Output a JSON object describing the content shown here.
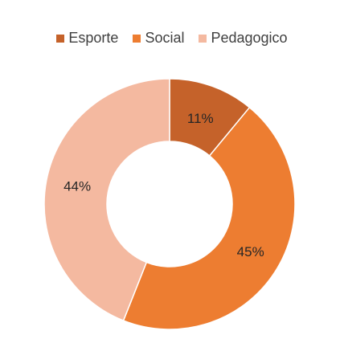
{
  "chart_data": {
    "type": "pie",
    "variant": "donut",
    "categories": [
      "Esporte",
      "Social",
      "Pedagogico"
    ],
    "values": [
      11,
      45,
      44
    ],
    "value_labels": [
      "11%",
      "45%",
      "44%"
    ],
    "colors": [
      "#c5622a",
      "#ed7d31",
      "#f4b9a0"
    ],
    "legend_position": "top",
    "title": ""
  }
}
